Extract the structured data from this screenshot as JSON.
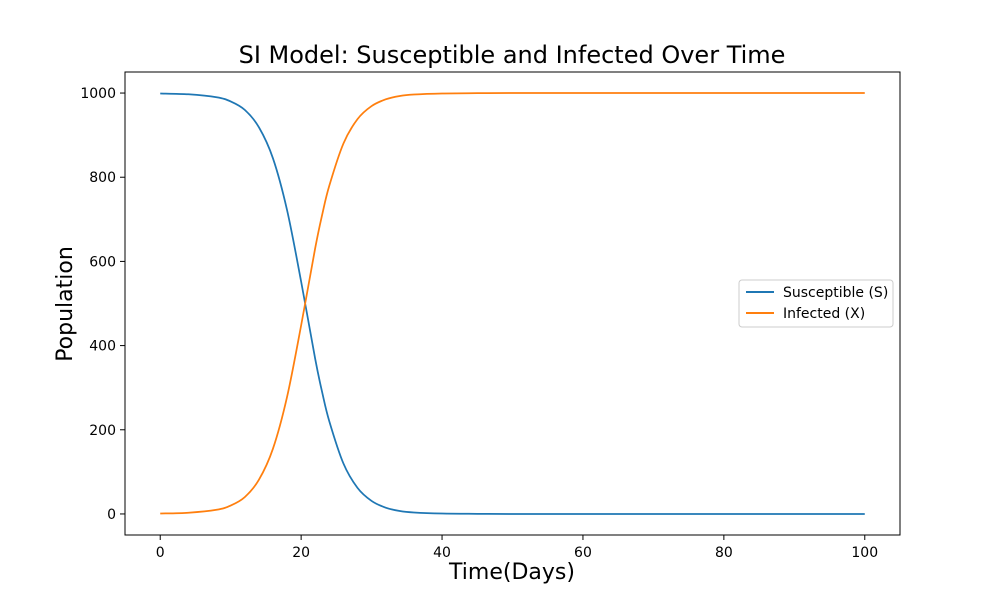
{
  "chart_data": {
    "type": "line",
    "title": "SI Model: Susceptible and Infected Over Time",
    "xlabel": "Time(Days)",
    "ylabel": "Population",
    "xlim": [
      -5,
      105
    ],
    "ylim": [
      -50,
      1050
    ],
    "x_ticks": [
      0,
      20,
      40,
      60,
      80,
      100
    ],
    "y_ticks": [
      0,
      200,
      400,
      600,
      800,
      1000
    ],
    "x_tick_labels": [
      "0",
      "20",
      "40",
      "60",
      "80",
      "100"
    ],
    "y_tick_labels": [
      "0",
      "200",
      "400",
      "600",
      "800",
      "1000"
    ],
    "grid": false,
    "legend_position": "center-right",
    "series": [
      {
        "name": "Susceptible (S)",
        "color": "#1f77b4",
        "x": [
          0,
          4,
          8,
          10,
          12,
          14,
          16,
          18,
          20,
          22,
          23,
          24,
          26,
          28,
          30,
          32,
          34,
          36,
          40,
          45,
          50,
          60,
          70,
          80,
          90,
          100
        ],
        "y": [
          999,
          997,
          990,
          980,
          960,
          919,
          845,
          722,
          552,
          368,
          288,
          220,
          120,
          62,
          31,
          15,
          7,
          3.5,
          1,
          0.3,
          0,
          0,
          0,
          0,
          0,
          0
        ]
      },
      {
        "name": "Infected (X)",
        "color": "#ff7f0e",
        "x": [
          0,
          4,
          8,
          10,
          12,
          14,
          16,
          18,
          20,
          22,
          23,
          24,
          26,
          28,
          30,
          32,
          34,
          36,
          40,
          45,
          50,
          60,
          70,
          80,
          90,
          100
        ],
        "y": [
          1,
          3,
          10,
          20,
          40,
          81,
          155,
          278,
          448,
          632,
          712,
          780,
          880,
          938,
          969,
          985,
          993,
          996.5,
          999,
          999.7,
          1000,
          1000,
          1000,
          1000,
          1000,
          1000
        ]
      }
    ]
  }
}
